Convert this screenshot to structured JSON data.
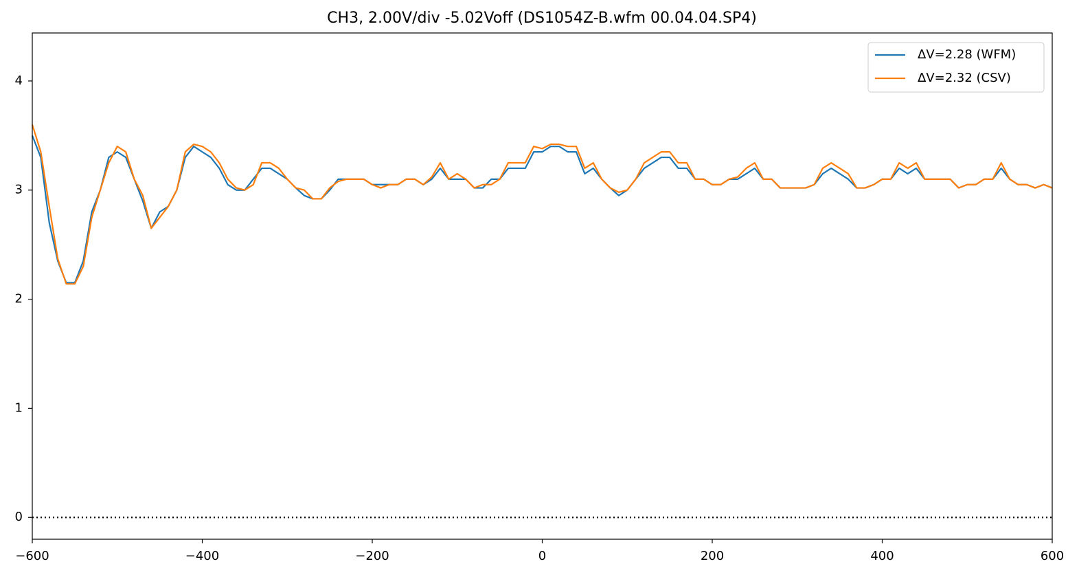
{
  "chart_data": {
    "type": "line",
    "title": "CH3, 2.00V/div -5.02Voff (DS1054Z-B.wfm 00.04.04.SP4)",
    "x": [
      -600,
      -590,
      -580,
      -570,
      -560,
      -550,
      -540,
      -530,
      -520,
      -510,
      -500,
      -490,
      -480,
      -470,
      -460,
      -450,
      -440,
      -430,
      -420,
      -410,
      -400,
      -390,
      -380,
      -370,
      -360,
      -350,
      -340,
      -330,
      -320,
      -310,
      -300,
      -290,
      -280,
      -270,
      -260,
      -250,
      -240,
      -230,
      -220,
      -210,
      -200,
      -190,
      -180,
      -170,
      -160,
      -150,
      -140,
      -130,
      -120,
      -110,
      -100,
      -90,
      -80,
      -70,
      -60,
      -50,
      -40,
      -30,
      -20,
      -10,
      0,
      10,
      20,
      30,
      40,
      50,
      60,
      70,
      80,
      90,
      100,
      110,
      120,
      130,
      140,
      150,
      160,
      170,
      180,
      190,
      200,
      210,
      220,
      230,
      240,
      250,
      260,
      270,
      280,
      290,
      300,
      310,
      320,
      330,
      340,
      350,
      360,
      370,
      380,
      390,
      400,
      410,
      420,
      430,
      440,
      450,
      460,
      470,
      480,
      490,
      500,
      510,
      520,
      530,
      540,
      550,
      560,
      570,
      580,
      590,
      600
    ],
    "series": [
      {
        "name": "ΔV=2.28 (WFM)",
        "color": "#1f77b4",
        "values": [
          3.5,
          3.3,
          2.7,
          2.35,
          2.15,
          2.15,
          2.35,
          2.8,
          3.0,
          3.3,
          3.35,
          3.3,
          3.1,
          2.9,
          2.65,
          2.8,
          2.85,
          3.0,
          3.3,
          3.4,
          3.35,
          3.3,
          3.2,
          3.05,
          3.0,
          3.0,
          3.1,
          3.2,
          3.2,
          3.15,
          3.1,
          3.02,
          2.95,
          2.92,
          2.92,
          3.0,
          3.1,
          3.1,
          3.1,
          3.1,
          3.05,
          3.05,
          3.05,
          3.05,
          3.1,
          3.1,
          3.05,
          3.1,
          3.2,
          3.1,
          3.1,
          3.1,
          3.02,
          3.02,
          3.1,
          3.1,
          3.2,
          3.2,
          3.2,
          3.35,
          3.35,
          3.4,
          3.4,
          3.35,
          3.35,
          3.15,
          3.2,
          3.1,
          3.02,
          2.95,
          3.0,
          3.1,
          3.2,
          3.25,
          3.3,
          3.3,
          3.2,
          3.2,
          3.1,
          3.1,
          3.05,
          3.05,
          3.1,
          3.1,
          3.15,
          3.2,
          3.1,
          3.1,
          3.02,
          3.02,
          3.02,
          3.02,
          3.05,
          3.15,
          3.2,
          3.15,
          3.1,
          3.02,
          3.02,
          3.05,
          3.1,
          3.1,
          3.2,
          3.15,
          3.2,
          3.1,
          3.1,
          3.1,
          3.1,
          3.02,
          3.05,
          3.05,
          3.1,
          3.1,
          3.2,
          3.1,
          3.05,
          3.05,
          3.02,
          3.05,
          3.02
        ]
      },
      {
        "name": "ΔV=2.32 (CSV)",
        "color": "#ff7f0e",
        "values": [
          3.6,
          3.35,
          2.85,
          2.37,
          2.14,
          2.14,
          2.3,
          2.75,
          3.0,
          3.25,
          3.4,
          3.35,
          3.1,
          2.95,
          2.65,
          2.75,
          2.85,
          3.0,
          3.35,
          3.42,
          3.4,
          3.35,
          3.25,
          3.1,
          3.02,
          3.0,
          3.05,
          3.25,
          3.25,
          3.2,
          3.1,
          3.02,
          3.0,
          2.92,
          2.92,
          3.02,
          3.08,
          3.1,
          3.1,
          3.1,
          3.05,
          3.02,
          3.05,
          3.05,
          3.1,
          3.1,
          3.05,
          3.12,
          3.25,
          3.1,
          3.15,
          3.1,
          3.02,
          3.05,
          3.05,
          3.1,
          3.25,
          3.25,
          3.25,
          3.4,
          3.38,
          3.42,
          3.42,
          3.4,
          3.4,
          3.2,
          3.25,
          3.1,
          3.02,
          2.98,
          3.0,
          3.1,
          3.25,
          3.3,
          3.35,
          3.35,
          3.25,
          3.25,
          3.1,
          3.1,
          3.05,
          3.05,
          3.1,
          3.12,
          3.2,
          3.25,
          3.1,
          3.1,
          3.02,
          3.02,
          3.02,
          3.02,
          3.05,
          3.2,
          3.25,
          3.2,
          3.15,
          3.02,
          3.02,
          3.05,
          3.1,
          3.1,
          3.25,
          3.2,
          3.25,
          3.1,
          3.1,
          3.1,
          3.1,
          3.02,
          3.05,
          3.05,
          3.1,
          3.1,
          3.25,
          3.1,
          3.05,
          3.05,
          3.02,
          3.05,
          3.02
        ]
      }
    ],
    "reference_line": 0,
    "xlim": [
      -600,
      600
    ],
    "xticks": [
      {
        "value": -600,
        "label": "−600"
      },
      {
        "value": -400,
        "label": "−400"
      },
      {
        "value": -200,
        "label": "−200"
      },
      0,
      200,
      400,
      600
    ],
    "ylim": [
      -0.2,
      4.44
    ],
    "yticks": [
      0,
      1,
      2,
      3,
      4
    ],
    "legend": "upper right"
  }
}
